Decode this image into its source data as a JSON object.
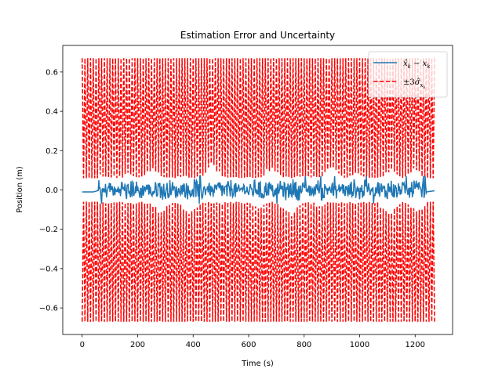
{
  "chart_data": {
    "type": "line",
    "title": "Estimation Error and Uncertainty",
    "xlabel": "Time (s)",
    "ylabel": "Position (m)",
    "xlim": [
      -70,
      1335
    ],
    "ylim": [
      -0.735,
      0.735
    ],
    "xticks": [
      0,
      200,
      400,
      600,
      800,
      1000,
      1200
    ],
    "xtick_labels": [
      "0",
      "200",
      "400",
      "600",
      "800",
      "1000",
      "1200"
    ],
    "yticks": [
      -0.6,
      -0.4,
      -0.2,
      0.0,
      0.2,
      0.4,
      0.6
    ],
    "ytick_labels": [
      "−0.6",
      "−0.4",
      "−0.2",
      "0.0",
      "0.2",
      "0.4",
      "0.6"
    ],
    "grid": false,
    "legend_position": "top-right",
    "series": [
      {
        "name": "x̂ₖ − xₖ",
        "color": "#1f77b4",
        "style": "solid",
        "t_range": [
          0,
          1270
        ],
        "description_values": {
          "start": -0.01,
          "typical_amplitude": 0.04,
          "peak_amplitude": 0.07
        }
      },
      {
        "name": "±3σ̂ xₖ",
        "color": "#ff0000",
        "style": "dashed",
        "t_range": [
          0,
          1270
        ],
        "outer_bound": 0.67,
        "inner_bound_typical": 0.06,
        "inner_bound_peak": 0.12,
        "oscillation_period": 10
      }
    ]
  }
}
